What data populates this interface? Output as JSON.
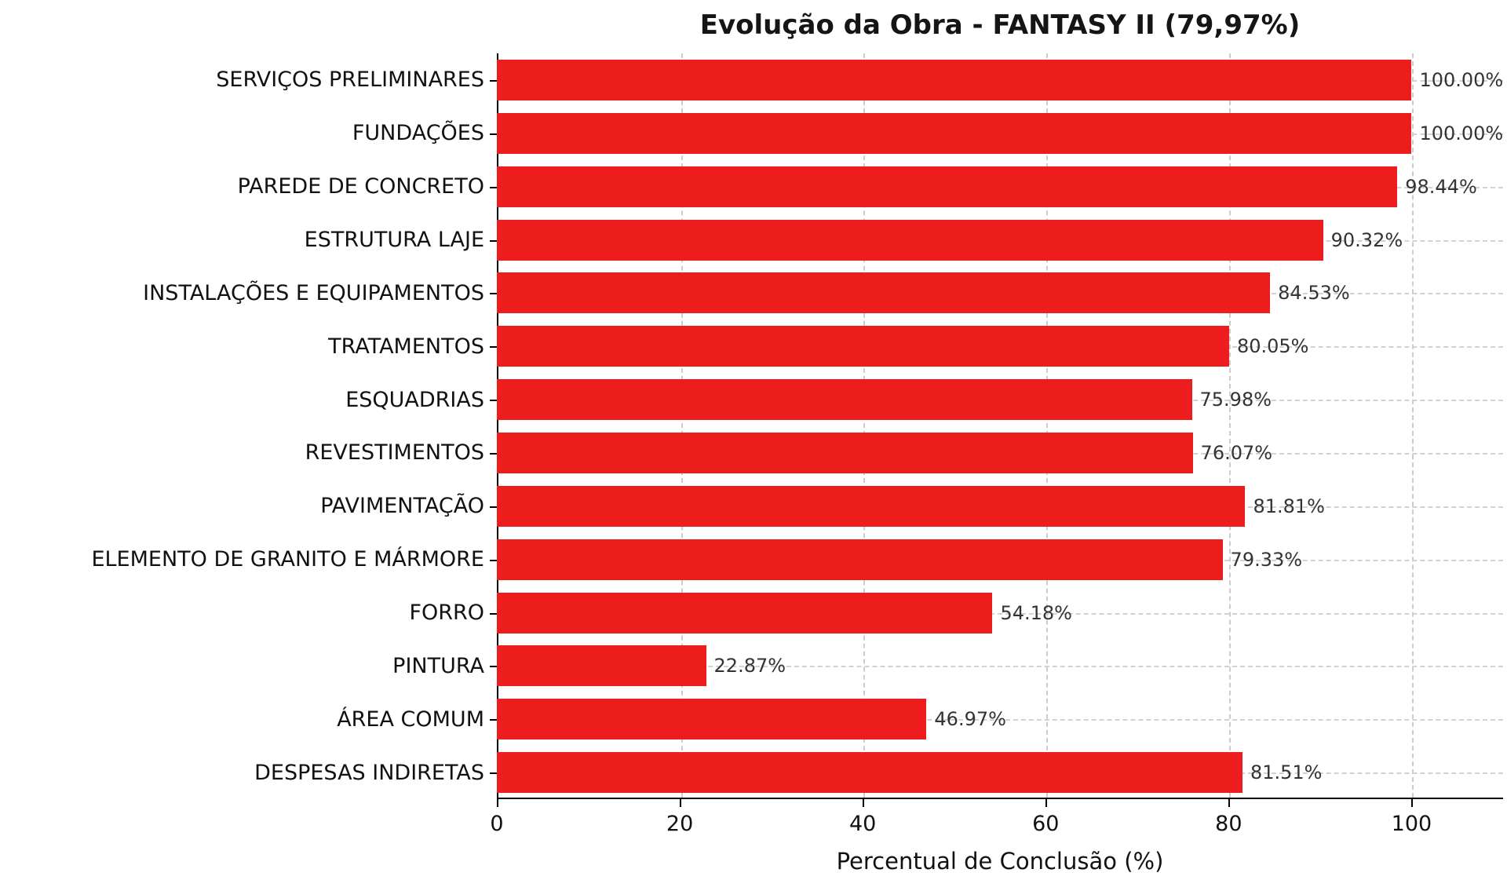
{
  "chart_data": {
    "type": "bar",
    "orientation": "horizontal",
    "title": "Evolução da Obra - FANTASY II (79,97%)",
    "xlabel": "Percentual de Conclusão (%)",
    "categories": [
      "SERVIÇOS PRELIMINARES",
      "FUNDAÇÕES",
      "PAREDE DE CONCRETO",
      "ESTRUTURA LAJE",
      "INSTALAÇÕES E EQUIPAMENTOS",
      "TRATAMENTOS",
      "ESQUADRIAS",
      "REVESTIMENTOS",
      "PAVIMENTAÇÃO",
      "ELEMENTO DE GRANITO E MÁRMORE",
      "FORRO",
      "PINTURA",
      "ÁREA COMUM",
      "DESPESAS INDIRETAS"
    ],
    "values": [
      100.0,
      100.0,
      98.44,
      90.32,
      84.53,
      80.05,
      75.98,
      76.07,
      81.81,
      79.33,
      54.18,
      22.87,
      46.97,
      81.51
    ],
    "value_labels": [
      "100.00%",
      "100.00%",
      "98.44%",
      "90.32%",
      "84.53%",
      "80.05%",
      "75.98%",
      "76.07%",
      "81.81%",
      "79.33%",
      "54.18%",
      "22.87%",
      "46.97%",
      "81.51%"
    ],
    "xlim": [
      0,
      110
    ],
    "xticks": [
      0,
      20,
      40,
      60,
      80,
      100
    ],
    "xtick_labels": [
      "0",
      "20",
      "40",
      "60",
      "80",
      "100"
    ],
    "grid": true,
    "legend": false,
    "colors": {
      "bar": "#ed1c1d",
      "grid": "#cccccc",
      "axis": "#000000",
      "value_label": "#333333",
      "title": "#151515"
    }
  }
}
